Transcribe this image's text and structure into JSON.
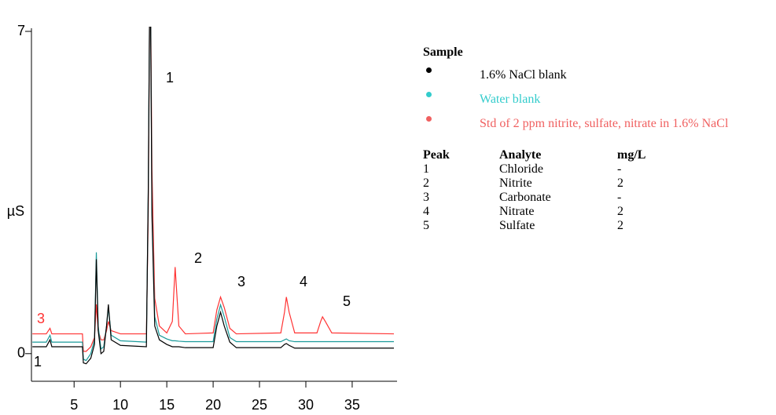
{
  "chart_data": {
    "type": "line",
    "y_label": "µS",
    "x": [
      0.5,
      2.0,
      2.4,
      2.6,
      3.0,
      5.9,
      6.0,
      6.3,
      6.8,
      7.2,
      7.4,
      7.6,
      7.9,
      8.2,
      8.5,
      8.7,
      9.0,
      10,
      12.8,
      13.0,
      13.2,
      13.4,
      13.7,
      14.2,
      15.0,
      15.6,
      15.9,
      16.3,
      17,
      20.0,
      20.4,
      20.8,
      21.2,
      21.8,
      22.5,
      27.3,
      27.7,
      27.9,
      28.2,
      28.8,
      31.2,
      31.6,
      31.8,
      32.1,
      32.8,
      39.5
    ],
    "series": [
      {
        "name": "Std of 2 ppm nitrite, sulfate, nitrate in 1.6% NaCl",
        "color": "#ff3333",
        "legend_color": "#f06060",
        "values": [
          0.43,
          0.43,
          0.55,
          0.43,
          0.43,
          0.43,
          0.05,
          0.05,
          0.15,
          0.35,
          1.07,
          0.5,
          0.3,
          0.3,
          0.5,
          0.7,
          0.5,
          0.43,
          0.43,
          3.0,
          9,
          4,
          1.2,
          0.6,
          0.45,
          0.7,
          1.88,
          0.6,
          0.43,
          0.45,
          0.95,
          1.23,
          1.0,
          0.55,
          0.43,
          0.45,
          0.9,
          1.23,
          0.9,
          0.45,
          0.45,
          0.7,
          0.8,
          0.7,
          0.45,
          0.43
        ]
      },
      {
        "name": "Water blank",
        "color": "#1a9a9a",
        "legend_color": "#33cccc",
        "values": [
          0.25,
          0.25,
          0.4,
          0.25,
          0.25,
          0.25,
          -0.12,
          -0.15,
          0.0,
          0.3,
          2.2,
          0.6,
          0.1,
          0.15,
          0.6,
          1.0,
          0.4,
          0.28,
          0.25,
          3.5,
          9,
          3.2,
          0.8,
          0.4,
          0.32,
          0.28,
          0.28,
          0.27,
          0.26,
          0.26,
          0.75,
          1.06,
          0.8,
          0.35,
          0.26,
          0.26,
          0.3,
          0.32,
          0.28,
          0.26,
          0.26,
          0.26,
          0.26,
          0.26,
          0.26,
          0.26
        ]
      },
      {
        "name": "1.6% NaCl blank",
        "color": "#000000",
        "legend_color": "#000000",
        "values": [
          0.15,
          0.15,
          0.3,
          0.15,
          0.15,
          0.15,
          -0.2,
          -0.22,
          -0.1,
          0.2,
          2.05,
          0.5,
          0.0,
          0.05,
          0.6,
          1.07,
          0.3,
          0.18,
          0.15,
          3.5,
          9,
          3,
          0.6,
          0.3,
          0.2,
          0.15,
          0.15,
          0.15,
          0.13,
          0.13,
          0.6,
          0.9,
          0.6,
          0.25,
          0.13,
          0.13,
          0.2,
          0.22,
          0.18,
          0.12,
          0.12,
          0.12,
          0.12,
          0.12,
          0.12,
          0.12
        ]
      }
    ],
    "xlim": [
      0.4,
      39.5
    ],
    "xticks": [
      5,
      10,
      15,
      20,
      25,
      30,
      35
    ],
    "ylim": [
      -0.6,
      7
    ],
    "yticks": [
      0,
      7
    ],
    "peak_labels": [
      "1",
      "2",
      "3",
      "4",
      "5"
    ],
    "trace_labels": [
      "3",
      "1"
    ],
    "legend_title": "Sample",
    "table": {
      "header": [
        "Peak",
        "Analyte",
        "mg/L"
      ],
      "rows": [
        [
          "1",
          "Chloride",
          "-"
        ],
        [
          "2",
          "Nitrite",
          2
        ],
        [
          "3",
          "Carbonate",
          "-"
        ],
        [
          "4",
          "Nitrate",
          2
        ],
        [
          "5",
          "Sulfate",
          2
        ]
      ]
    }
  }
}
